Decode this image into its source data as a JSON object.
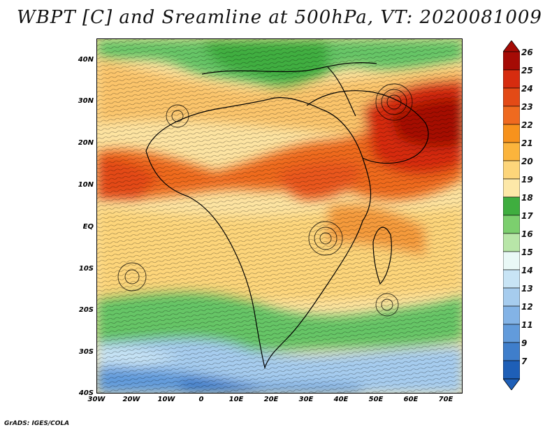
{
  "title": "WBPT [C] and Sreamline at 500hPa, VT: 2020081009",
  "credit": "GrADS: IGES/COLA",
  "map": {
    "lat_ticks": [
      "40N",
      "30N",
      "20N",
      "10N",
      "EQ",
      "10S",
      "20S",
      "30S",
      "40S"
    ],
    "lon_ticks": [
      "30W",
      "20W",
      "10W",
      "0",
      "10E",
      "20E",
      "30E",
      "40E",
      "50E",
      "60E",
      "70E"
    ],
    "lat_range": [
      -40,
      45
    ],
    "lon_range": [
      -30,
      75
    ]
  },
  "colorbar": {
    "labels": [
      "26",
      "25",
      "24",
      "23",
      "22",
      "21",
      "20",
      "19",
      "18",
      "17",
      "16",
      "15",
      "14",
      "13",
      "12",
      "11",
      "9",
      "7"
    ],
    "colors": [
      "#a50b05",
      "#d62c0f",
      "#e34a16",
      "#ef6a1f",
      "#f7921c",
      "#fbb43c",
      "#fdd57a",
      "#fde8a8",
      "#3fae3f",
      "#7ccf6e",
      "#b8e6a8",
      "#e9f8f6",
      "#c8e4f5",
      "#a6ccee",
      "#83b3e6",
      "#629bdb",
      "#3f7ecb",
      "#1e5fb7"
    ]
  },
  "palette": {
    "cold_blue": "#8fb9e8",
    "deep_blue": "#4f86d2",
    "green": "#66c566",
    "light_green": "#a8dc96",
    "pale": "#fde8a8",
    "yellow": "#fdd57a",
    "orange": "#f59a3a",
    "red_orange": "#e9571c",
    "dark_red": "#c43212"
  }
}
